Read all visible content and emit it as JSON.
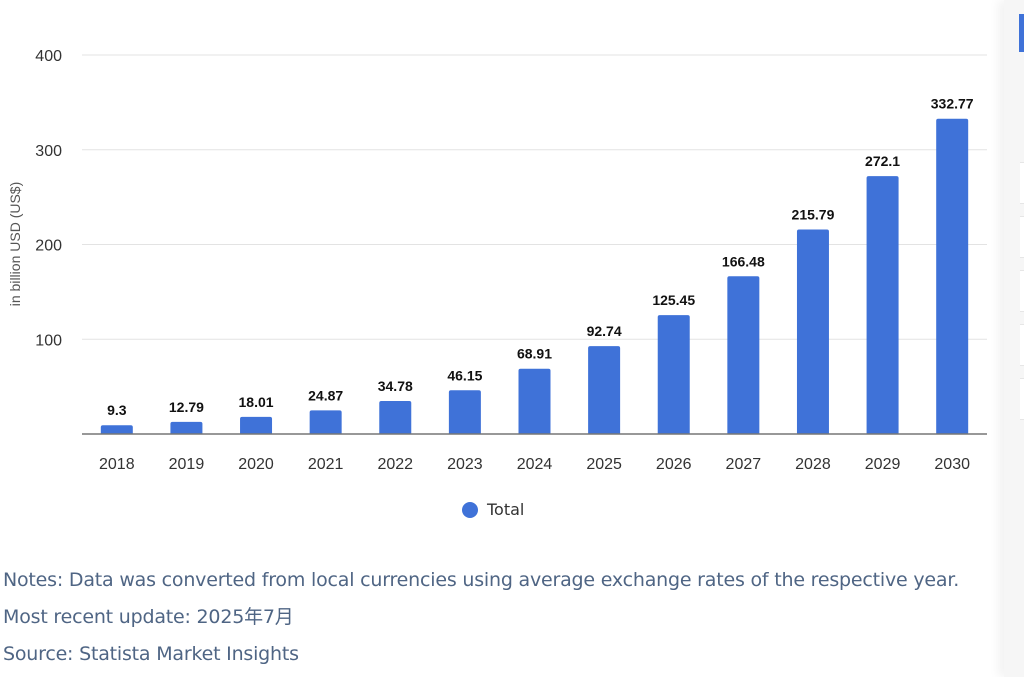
{
  "chart_data": {
    "type": "bar",
    "title": "",
    "xlabel": "",
    "ylabel": "in billion USD (US$)",
    "categories": [
      "2018",
      "2019",
      "2020",
      "2021",
      "2022",
      "2023",
      "2024",
      "2025",
      "2026",
      "2027",
      "2028",
      "2029",
      "2030"
    ],
    "series": [
      {
        "name": "Total",
        "color": "#3f72d8",
        "values": [
          9.3,
          12.79,
          18.01,
          24.87,
          34.78,
          46.15,
          68.91,
          92.74,
          125.45,
          166.48,
          215.79,
          272.1,
          332.77
        ],
        "labels": [
          "9.3",
          "12.79",
          "18.01",
          "24.87",
          "34.78",
          "46.15",
          "68.91",
          "92.74",
          "125.45",
          "166.48",
          "215.79",
          "272.1",
          "332.77"
        ]
      }
    ],
    "ylim": [
      0,
      400
    ],
    "yticks": [
      100,
      200,
      300,
      400
    ],
    "ytick_labels": [
      "100",
      "200",
      "300",
      "400"
    ],
    "grid": true,
    "legend": {
      "position": "bottom-center",
      "entries": [
        "Total"
      ]
    }
  },
  "legend": {
    "label": "Total"
  },
  "footer": {
    "notes": "Notes: Data was converted from local currencies using average exchange rates of the respective year.",
    "update": "Most recent update: 2025年7月",
    "source": "Source: Statista Market Insights"
  }
}
